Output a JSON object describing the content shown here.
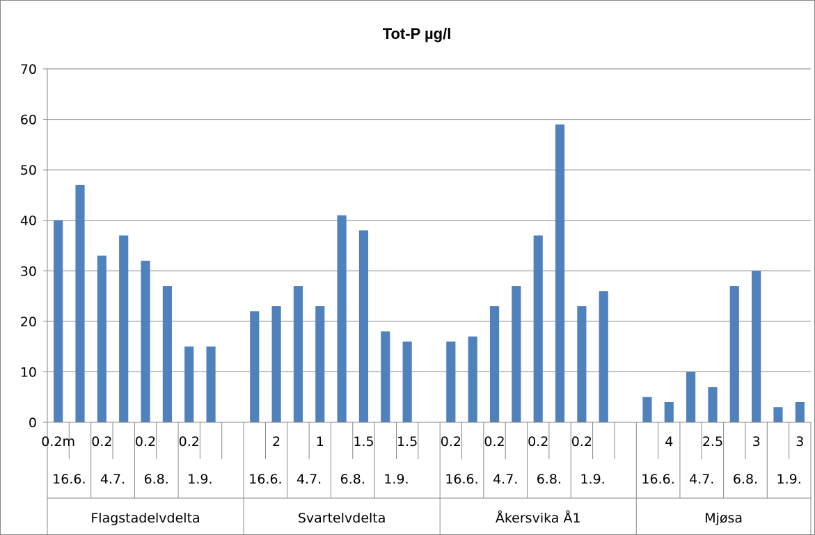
{
  "chart_data": {
    "type": "bar",
    "title": "Tot-P µg/l",
    "ylim": [
      0,
      70
    ],
    "yticks": [
      0,
      10,
      20,
      30,
      40,
      50,
      60,
      70
    ],
    "grid": true,
    "legend": "none",
    "bar_color": "#4f81bd",
    "values": [
      40,
      47,
      33,
      37,
      32,
      27,
      15,
      15,
      22,
      23,
      27,
      23,
      41,
      38,
      18,
      16,
      16,
      17,
      23,
      27,
      37,
      59,
      23,
      26,
      5,
      4,
      10,
      7,
      27,
      30,
      3,
      4
    ],
    "groups": [
      {
        "name": "Flagstadelvdelta",
        "dates": [
          "16.6.",
          "4.7.",
          "6.8.",
          "1.9."
        ],
        "depths": [
          "0.2m",
          "",
          "0.2",
          "",
          "0.2",
          "",
          "0.2",
          ""
        ]
      },
      {
        "name": "Svartelvdelta",
        "dates": [
          "16.6.",
          "4.7.",
          "6.8.",
          "1.9."
        ],
        "depths": [
          "",
          "2",
          "",
          "1",
          "",
          "1.5",
          "",
          "1.5"
        ]
      },
      {
        "name": "Åkersvika Å1",
        "dates": [
          "16.6.",
          "4.7.",
          "6.8.",
          "1.9."
        ],
        "depths": [
          "0.2",
          "",
          "0.2",
          "",
          "0.2",
          "",
          "0.2",
          ""
        ]
      },
      {
        "name": "Mjøsa",
        "dates": [
          "16.6.",
          "4.7.",
          "6.8.",
          "1.9."
        ],
        "depths": [
          "",
          "4",
          "",
          "2.5",
          "",
          "3",
          "",
          "3"
        ]
      }
    ]
  }
}
